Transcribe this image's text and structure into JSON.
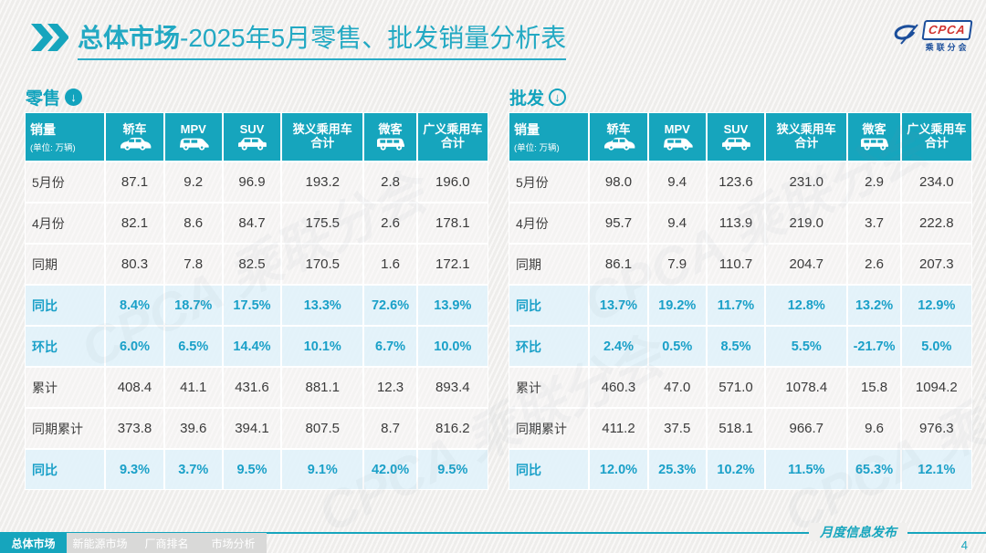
{
  "page": {
    "title_bold": "总体市场",
    "title_rest": "-2025年5月零售、批发销量分析表",
    "publication_label": "月度信息发布",
    "page_number": "4"
  },
  "logo": {
    "acronym": "CPCA",
    "cn_name": "乘联分会"
  },
  "watermark_text": "CPCA 乘联分会",
  "table_header": {
    "sales_label": "销量",
    "sales_unit": "(单位: 万辆)",
    "columns": [
      {
        "label": "轿车",
        "icon": "sedan-icon"
      },
      {
        "label": "MPV",
        "icon": "mpv-icon"
      },
      {
        "label": "SUV",
        "icon": "suv-icon"
      },
      {
        "label": "狭义乘用车",
        "label_line2": "合计"
      },
      {
        "label": "微客",
        "icon": "microvan-icon"
      },
      {
        "label": "广义乘用车",
        "label_line2": "合计"
      }
    ]
  },
  "tables": [
    {
      "id": "retail",
      "section_label": "零售",
      "section_icon": "circle-down-arrow-filled-icon",
      "rows": [
        {
          "label": "5月份",
          "values": [
            "87.1",
            "9.2",
            "96.9",
            "193.2",
            "2.8",
            "196.0"
          ],
          "highlight": false
        },
        {
          "label": "4月份",
          "values": [
            "82.1",
            "8.6",
            "84.7",
            "175.5",
            "2.6",
            "178.1"
          ],
          "highlight": false
        },
        {
          "label": "同期",
          "values": [
            "80.3",
            "7.8",
            "82.5",
            "170.5",
            "1.6",
            "172.1"
          ],
          "highlight": false
        },
        {
          "label": "同比",
          "values": [
            "8.4%",
            "18.7%",
            "17.5%",
            "13.3%",
            "72.6%",
            "13.9%"
          ],
          "highlight": true
        },
        {
          "label": "环比",
          "values": [
            "6.0%",
            "6.5%",
            "14.4%",
            "10.1%",
            "6.7%",
            "10.0%"
          ],
          "highlight": true
        },
        {
          "label": "累计",
          "values": [
            "408.4",
            "41.1",
            "431.6",
            "881.1",
            "12.3",
            "893.4"
          ],
          "highlight": false
        },
        {
          "label": "同期累计",
          "values": [
            "373.8",
            "39.6",
            "394.1",
            "807.5",
            "8.7",
            "816.2"
          ],
          "highlight": false
        },
        {
          "label": "同比",
          "values": [
            "9.3%",
            "3.7%",
            "9.5%",
            "9.1%",
            "42.0%",
            "9.5%"
          ],
          "highlight": true
        }
      ]
    },
    {
      "id": "wholesale",
      "section_label": "批发",
      "section_icon": "circle-down-arrow-outline-icon",
      "rows": [
        {
          "label": "5月份",
          "values": [
            "98.0",
            "9.4",
            "123.6",
            "231.0",
            "2.9",
            "234.0"
          ],
          "highlight": false
        },
        {
          "label": "4月份",
          "values": [
            "95.7",
            "9.4",
            "113.9",
            "219.0",
            "3.7",
            "222.8"
          ],
          "highlight": false
        },
        {
          "label": "同期",
          "values": [
            "86.1",
            "7.9",
            "110.7",
            "204.7",
            "2.6",
            "207.3"
          ],
          "highlight": false
        },
        {
          "label": "同比",
          "values": [
            "13.7%",
            "19.2%",
            "11.7%",
            "12.8%",
            "13.2%",
            "12.9%"
          ],
          "highlight": true
        },
        {
          "label": "环比",
          "values": [
            "2.4%",
            "0.5%",
            "8.5%",
            "5.5%",
            "-21.7%",
            "5.0%"
          ],
          "highlight": true
        },
        {
          "label": "累计",
          "values": [
            "460.3",
            "47.0",
            "571.0",
            "1078.4",
            "15.8",
            "1094.2"
          ],
          "highlight": false
        },
        {
          "label": "同期累计",
          "values": [
            "411.2",
            "37.5",
            "518.1",
            "966.7",
            "9.6",
            "976.3"
          ],
          "highlight": false
        },
        {
          "label": "同比",
          "values": [
            "12.0%",
            "25.3%",
            "10.2%",
            "11.5%",
            "65.3%",
            "12.1%"
          ],
          "highlight": true
        }
      ]
    }
  ],
  "footer_tabs": [
    {
      "label": "总体市场",
      "active": true
    },
    {
      "label": "新能源市场",
      "active": false
    },
    {
      "label": "厂商排名",
      "active": false
    },
    {
      "label": "市场分析",
      "active": false
    }
  ],
  "colors": {
    "accent_teal": "#16a5bd",
    "title_teal": "#23a9c3",
    "highlight_row_bg": "#e2f2fa",
    "highlight_text": "#1aa0c8",
    "cpca_red": "#d0312d",
    "cpca_blue": "#1b4e9b"
  }
}
